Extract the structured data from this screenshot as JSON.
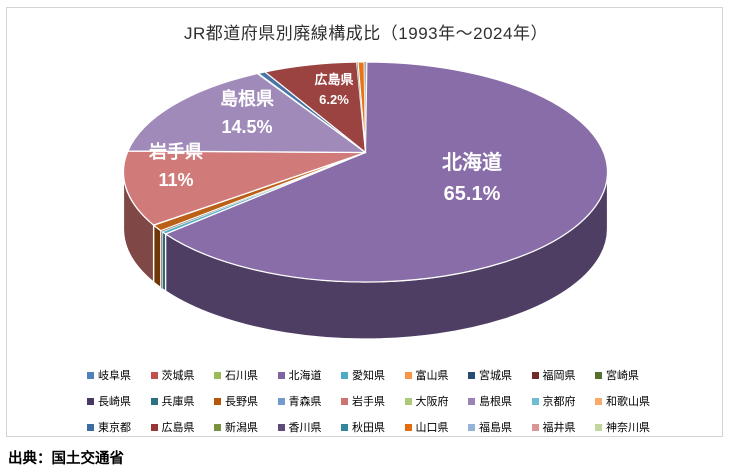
{
  "title": "JR都道府県別廃線構成比（1993年～2024年）",
  "source_note": "出典：国土交通省",
  "chart_data": {
    "type": "pie",
    "is_3d": true,
    "title": "JR都道府県別廃線構成比（1993年～2024年）",
    "unit": "%",
    "start_angle_deg": 0,
    "direction": "clockwise",
    "legend_position": "bottom",
    "note": "Only four slices carry data labels (北海道 65.1%, 島根県 14.5%, 岩手県 11%, 広島県 6.2%); remaining prefecture values are tiny slivers estimated from pixel widths.",
    "series": [
      {
        "name": "岐阜県",
        "value": 0.03,
        "color": "#4F81BD"
      },
      {
        "name": "茨城県",
        "value": 0.03,
        "color": "#C0504D"
      },
      {
        "name": "石川県",
        "value": 0.03,
        "color": "#9BBB59"
      },
      {
        "name": "北海道",
        "value": 65.1,
        "color": "#8064A2"
      },
      {
        "name": "愛知県",
        "value": 0.4,
        "color": "#4BACC6"
      },
      {
        "name": "富山県",
        "value": 0.03,
        "color": "#F79646"
      },
      {
        "name": "宮城県",
        "value": 0.03,
        "color": "#254E72"
      },
      {
        "name": "福岡県",
        "value": 0.03,
        "color": "#6E2B28"
      },
      {
        "name": "宮崎県",
        "value": 0.03,
        "color": "#55702E"
      },
      {
        "name": "長崎県",
        "value": 0.03,
        "color": "#473963"
      },
      {
        "name": "兵庫県",
        "value": 0.03,
        "color": "#2B7183"
      },
      {
        "name": "長野県",
        "value": 0.9,
        "color": "#B65708"
      },
      {
        "name": "青森県",
        "value": 0.03,
        "color": "#729ACA"
      },
      {
        "name": "岩手県",
        "value": 11,
        "color": "#CD7371"
      },
      {
        "name": "大阪府",
        "value": 0.03,
        "color": "#AFC97A"
      },
      {
        "name": "島根県",
        "value": 14.5,
        "color": "#9983B5"
      },
      {
        "name": "京都府",
        "value": 0.03,
        "color": "#6FBDD1"
      },
      {
        "name": "和歌山県",
        "value": 0.03,
        "color": "#F9AB6B"
      },
      {
        "name": "東京都",
        "value": 0.5,
        "color": "#3C6BA0"
      },
      {
        "name": "広島県",
        "value": 6.2,
        "color": "#953735"
      },
      {
        "name": "新潟県",
        "value": 0.03,
        "color": "#77933C"
      },
      {
        "name": "香川県",
        "value": 0.03,
        "color": "#604A7B"
      },
      {
        "name": "秋田県",
        "value": 0.03,
        "color": "#31859C"
      },
      {
        "name": "山口県",
        "value": 0.4,
        "color": "#E46C0A"
      },
      {
        "name": "福島県",
        "value": 0.03,
        "color": "#95B3D7"
      },
      {
        "name": "福井県",
        "value": 0.03,
        "color": "#D99694"
      },
      {
        "name": "神奈川県",
        "value": 0.03,
        "color": "#C3D69B"
      }
    ],
    "labels": [
      {
        "name": "北海道",
        "pct": "65.1%",
        "x": 472,
        "y": 148,
        "size": 20
      },
      {
        "name": "島根県",
        "pct": "14.5%",
        "x": 247,
        "y": 86,
        "size": 18
      },
      {
        "name": "岩手県",
        "pct": "11%",
        "x": 176,
        "y": 139,
        "size": 18
      },
      {
        "name": "広島県",
        "pct": "6.2%",
        "x": 334,
        "y": 70,
        "size": 13
      }
    ]
  }
}
